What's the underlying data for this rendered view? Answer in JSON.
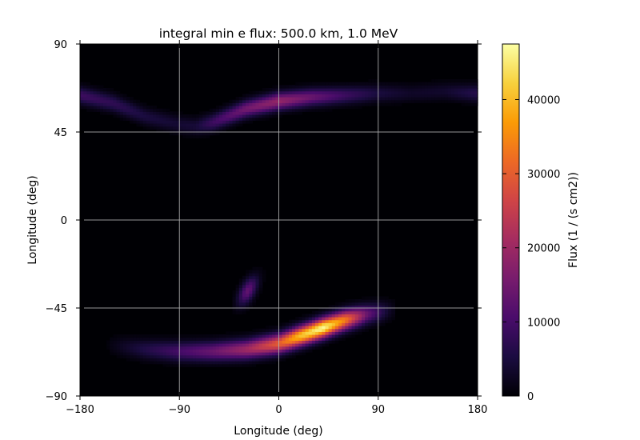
{
  "chart_data": {
    "type": "heatmap",
    "title": "integral min e flux: 500.0 km, 1.0 MeV",
    "xlabel": "Longitude (deg)",
    "ylabel": "Longitude (deg)",
    "xlim": [
      -180,
      180
    ],
    "ylim": [
      -90,
      90
    ],
    "x_ticks": [
      -180,
      -90,
      0,
      90,
      180
    ],
    "y_ticks": [
      -90,
      -45,
      0,
      45,
      90
    ],
    "x_tick_labels": [
      "−180",
      "−90",
      "0",
      "90",
      "180"
    ],
    "y_tick_labels": [
      "−90",
      "−45",
      "0",
      "45",
      "90"
    ],
    "grid": true,
    "colormap": "inferno",
    "colormap_stops": [
      "#000004",
      "#1b0c41",
      "#4a0c6b",
      "#781c6d",
      "#a52c60",
      "#cf4446",
      "#ed6925",
      "#fb9b06",
      "#f7d13d",
      "#fcffa4"
    ],
    "colorbar": {
      "label": "Flux (1 / (s cm2))",
      "min": 0,
      "max": 47500,
      "ticks": [
        0,
        10000,
        20000,
        30000,
        40000
      ],
      "tick_labels": [
        "0",
        "10000",
        "20000",
        "30000",
        "40000"
      ]
    },
    "features": [
      {
        "type": "curve_band",
        "lon": [
          -180,
          -150,
          -120,
          -90,
          -75,
          -60,
          -30,
          0,
          30,
          60,
          90,
          120,
          150,
          180
        ],
        "lat": [
          64,
          60,
          53,
          49,
          48,
          50,
          57,
          61,
          63,
          64,
          65,
          65,
          66,
          65
        ],
        "width_deg": 3.0,
        "peak": [
          9000,
          7500,
          5000,
          4000,
          4500,
          9000,
          15000,
          19000,
          14000,
          9000,
          5000,
          3000,
          3500,
          6500
        ]
      },
      {
        "type": "curve_band",
        "lon": [
          -150,
          -120,
          -90,
          -60,
          -30,
          0,
          20,
          40,
          60,
          80,
          100
        ],
        "lat": [
          -64,
          -66,
          -67,
          -67,
          -66,
          -63,
          -59,
          -55,
          -51,
          -48,
          -46
        ],
        "width_deg": 3.4,
        "peak": [
          1500,
          6000,
          10000,
          14000,
          20000,
          30000,
          41000,
          47000,
          34000,
          14000,
          3000
        ]
      },
      {
        "type": "blob",
        "lon": -28,
        "lat": -36,
        "a_deg": 14,
        "b_deg": 3.5,
        "angle_deg": 35,
        "peak": 13000
      }
    ]
  }
}
